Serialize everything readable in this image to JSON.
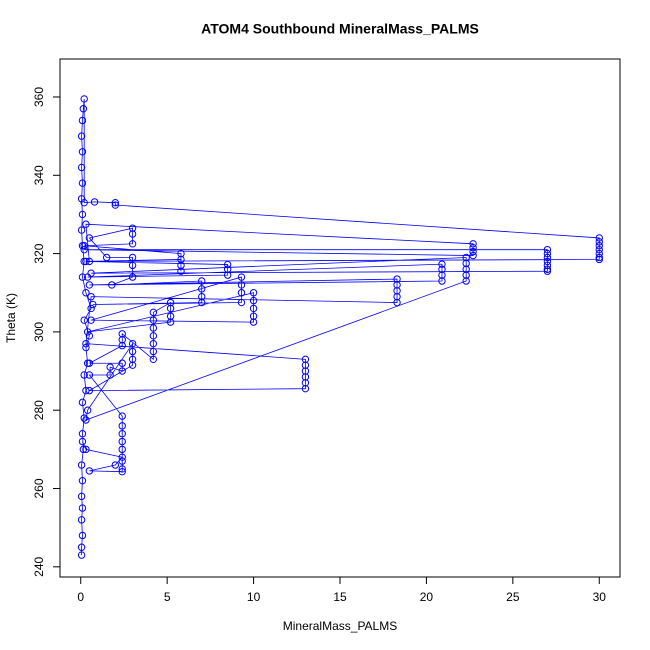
{
  "chart_data": {
    "type": "line",
    "markers": true,
    "title": "ATOM4 Southbound MineralMass_PALMS",
    "x_label": "MineralMass_PALMS",
    "y_label": "Theta (K)",
    "color": "#0000ff",
    "xlim": [
      -1.2,
      31.2
    ],
    "ylim": [
      237.4,
      369.7
    ],
    "xticks": [
      0,
      5,
      10,
      15,
      20,
      25,
      30
    ],
    "yticks": [
      240,
      260,
      280,
      300,
      320,
      340,
      360
    ],
    "x": [
      0.05,
      0.05,
      0.1,
      0.05,
      0.1,
      0.05,
      0.1,
      0.05,
      0.15,
      0.1,
      0.2,
      0.1,
      0.3,
      0.2,
      0.4,
      0.3,
      0.5,
      0.2,
      0.6,
      0.3,
      0.1,
      0.2,
      0.1,
      0.05,
      0.1,
      0.05,
      0.1,
      0.05,
      0.1,
      0.05,
      0.1,
      0.15,
      0.2,
      0.2,
      0.8,
      2,
      2,
      30,
      30,
      30,
      30,
      30,
      30,
      30,
      0.5,
      0.3,
      22.7,
      22.7,
      22.7,
      22.7,
      0.2,
      27,
      27,
      27,
      27,
      27,
      27,
      27,
      0.6,
      22.3,
      22.3,
      22.3,
      22.3,
      22.3,
      0.3,
      0.4,
      3,
      3,
      3,
      3,
      0.5,
      13,
      13,
      13,
      13,
      13,
      13,
      0.3,
      0.6,
      18.3,
      18.3,
      18.3,
      18.3,
      18.3,
      0.5,
      20.9,
      20.9,
      20.9,
      20.9,
      0.4,
      8.5,
      8.5,
      8.5,
      0.3,
      5.8,
      5.8,
      5.8,
      5.8,
      0.2,
      3,
      3,
      3,
      0.5,
      1.5,
      3,
      3,
      3,
      1.8,
      7,
      7,
      7,
      7,
      0.7,
      9.3,
      9.3,
      9.3,
      9.3,
      0.6,
      10,
      10,
      10,
      10,
      10,
      0.4,
      5.2,
      5.2,
      5.2,
      5.2,
      4.2,
      4.2,
      4.2,
      4.2,
      4.2,
      4.2,
      4.2,
      2.4,
      2.4,
      2.4,
      0.5,
      2.4,
      2.4,
      1.7,
      1.7,
      0.5,
      2.4,
      2.4,
      2.4,
      2.4,
      2.4,
      2.4,
      2.4,
      2.4,
      0.5,
      2,
      2.4,
      0.3,
      0.1
    ],
    "values": [
      243,
      245,
      248,
      252,
      255,
      258,
      262,
      266,
      270,
      274,
      278,
      282,
      285,
      289,
      292,
      296,
      299,
      303,
      306,
      310,
      314,
      318,
      322,
      326,
      330,
      334,
      338,
      342,
      346,
      350,
      354,
      357,
      359.5,
      333,
      333.2,
      333,
      332.4,
      324,
      323,
      322,
      321,
      320,
      319,
      318.5,
      318,
      327.5,
      322.5,
      321.5,
      320.5,
      319.5,
      321,
      321,
      320,
      319,
      318,
      317,
      316,
      315.5,
      315,
      319,
      317.5,
      316,
      314.5,
      313,
      277.5,
      280,
      297,
      295,
      293,
      291.5,
      285,
      285.5,
      287,
      288.5,
      290,
      291.5,
      293,
      297,
      309,
      307.5,
      309,
      310.5,
      312,
      313.5,
      312,
      313,
      314.5,
      316,
      317.3,
      314,
      314.5,
      316,
      317.2,
      318,
      318.5,
      317,
      315.5,
      320,
      322,
      322.5,
      325,
      326.5,
      324,
      319,
      319,
      317,
      314,
      312,
      313,
      311,
      309,
      307.5,
      307,
      307.5,
      310,
      312,
      314,
      303,
      302.5,
      304,
      306,
      308,
      310,
      300,
      302.5,
      304,
      306,
      307.5,
      305,
      303,
      301,
      299,
      297,
      295,
      293,
      299.5,
      298,
      296.5,
      292,
      292,
      290,
      291,
      289,
      289,
      278.5,
      276,
      274,
      272,
      270,
      267,
      265,
      264.3,
      264.5,
      266,
      268,
      270,
      272
    ]
  }
}
